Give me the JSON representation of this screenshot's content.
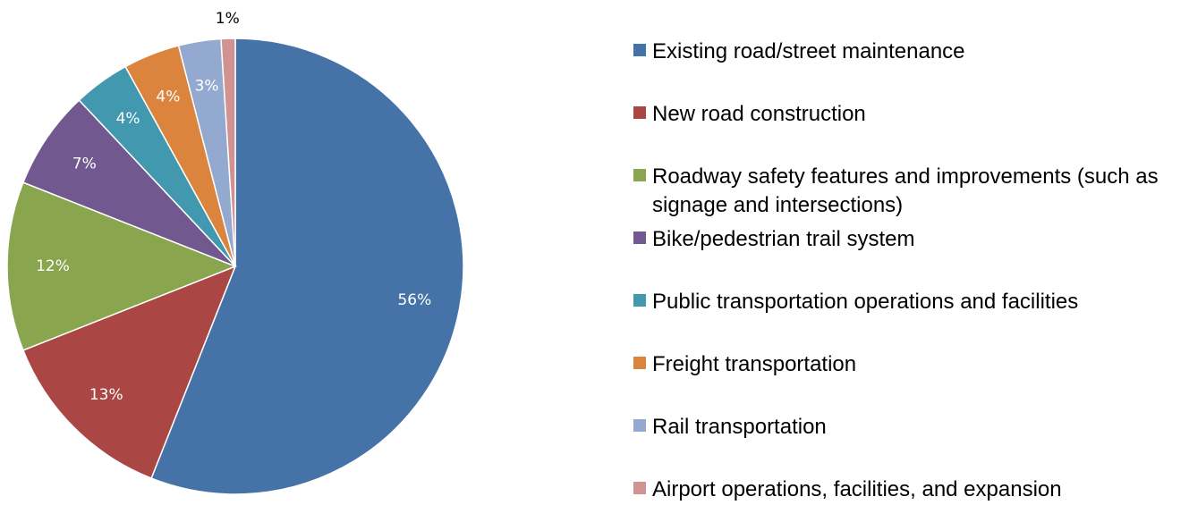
{
  "chart_data": {
    "type": "pie",
    "categories": [
      "Existing road/street maintenance",
      "New road construction",
      "Roadway safety features and improvements (such as signage and intersections)",
      "Bike/pedestrian trail system",
      "Public transportation operations and facilities",
      "Freight transportation",
      "Rail transportation",
      "Airport operations, facilities, and expansion"
    ],
    "values": [
      56,
      13,
      12,
      7,
      4,
      4,
      3,
      1
    ],
    "value_labels": [
      "56%",
      "13%",
      "12%",
      "7%",
      "4%",
      "4%",
      "3%",
      "1%"
    ],
    "colors": [
      "#4572a7",
      "#aa4643",
      "#89a54e",
      "#71588f",
      "#4198af",
      "#db843d",
      "#93a9cf",
      "#d09392"
    ],
    "legend": "right"
  }
}
